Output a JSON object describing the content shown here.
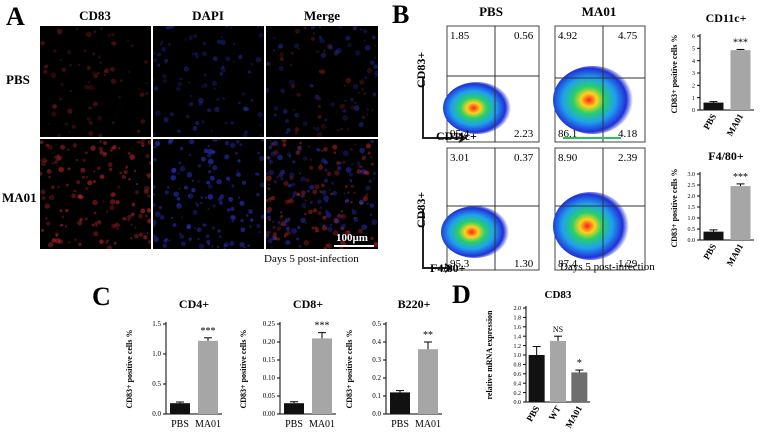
{
  "panels": {
    "A": {
      "letter": "A",
      "col_labels": [
        "CD83",
        "DAPI",
        "Merge"
      ],
      "row_labels": [
        "PBS",
        "MA01"
      ],
      "scale_bar": "100μm",
      "caption": "Days 5 post-infection"
    },
    "B": {
      "letter": "B",
      "col_labels": [
        "PBS",
        "MA01"
      ],
      "rows": [
        {
          "y_label": "CD83+",
          "x_label": "CD11c+",
          "plots": [
            {
              "q": [
                "1.85",
                "0.56",
                "95.4",
                "2.23"
              ]
            },
            {
              "q": [
                "4.92",
                "4.75",
                "86.1",
                "4.18"
              ]
            }
          ]
        },
        {
          "y_label": "CD83+",
          "x_label": "F4/80+",
          "plots": [
            {
              "q": [
                "3.01",
                "0.37",
                "95.3",
                "1.30"
              ]
            },
            {
              "q": [
                "8.90",
                "2.39",
                "87.4",
                "1.29"
              ]
            }
          ]
        }
      ],
      "caption": "Days 5 post-infection"
    },
    "C": {
      "letter": "C"
    },
    "D": {
      "letter": "D"
    }
  },
  "colors": {
    "black_bar": "#111111",
    "grey_bar": "#a6a6a6",
    "dark_grey_bar": "#6e6e6e",
    "stain_red": "#c0262a",
    "stain_blue": "#2b34c8"
  },
  "chart_data": [
    {
      "id": "b-cd11c",
      "type": "bar",
      "title": "CD11c+",
      "ylabel": "CD83+ positive cells %",
      "categories": [
        "PBS",
        "MA01"
      ],
      "values": [
        0.6,
        4.85
      ],
      "errors": [
        0.08,
        0.06
      ],
      "ylim": [
        0,
        6
      ],
      "ticks": [
        0,
        1,
        2,
        3,
        4,
        5,
        6
      ],
      "significance": [
        "",
        "***"
      ]
    },
    {
      "id": "b-f480",
      "type": "bar",
      "title": "F4/80+",
      "ylabel": "CD83+ positive cells %",
      "categories": [
        "PBS",
        "MA01"
      ],
      "values": [
        0.38,
        2.45
      ],
      "errors": [
        0.08,
        0.1
      ],
      "ylim": [
        0,
        3
      ],
      "ticks": [
        0.0,
        0.5,
        1.0,
        1.5,
        2.0,
        2.5,
        3.0
      ],
      "significance": [
        "",
        "***"
      ]
    },
    {
      "id": "c-cd4",
      "type": "bar",
      "title": "CD4+",
      "ylabel": "CD83+ positive cells %",
      "categories": [
        "PBS",
        "MA01"
      ],
      "values": [
        0.18,
        1.22
      ],
      "errors": [
        0.02,
        0.05
      ],
      "ylim": [
        0,
        1.5
      ],
      "ticks": [
        0.0,
        0.5,
        1.0,
        1.5
      ],
      "significance": [
        "",
        "***"
      ]
    },
    {
      "id": "c-cd8",
      "type": "bar",
      "title": "CD8+",
      "ylabel": "CD83+ positive cells %",
      "categories": [
        "PBS",
        "MA01"
      ],
      "values": [
        0.03,
        0.21
      ],
      "errors": [
        0.004,
        0.016
      ],
      "ylim": [
        0,
        0.25
      ],
      "ticks": [
        0.0,
        0.05,
        0.1,
        0.15,
        0.2,
        0.25
      ],
      "significance": [
        "",
        "***"
      ]
    },
    {
      "id": "c-b220",
      "type": "bar",
      "title": "B220+",
      "ylabel": "CD83+ positive cells %",
      "categories": [
        "PBS",
        "MA01"
      ],
      "values": [
        0.12,
        0.36
      ],
      "errors": [
        0.01,
        0.04
      ],
      "ylim": [
        0,
        0.5
      ],
      "ticks": [
        0.0,
        0.1,
        0.2,
        0.3,
        0.4,
        0.5
      ],
      "significance": [
        "",
        "**"
      ]
    },
    {
      "id": "d-cd83",
      "type": "bar",
      "title": "CD83",
      "ylabel": "relative mRNA expression",
      "categories": [
        "PBS",
        "WT",
        "MA01"
      ],
      "values": [
        1.0,
        1.3,
        0.63
      ],
      "errors": [
        0.18,
        0.1,
        0.05
      ],
      "ylim": [
        0,
        2.0
      ],
      "ticks": [
        0.0,
        0.2,
        0.4,
        0.6,
        0.8,
        1.0,
        1.2,
        1.4,
        1.6,
        1.8,
        2.0
      ],
      "significance": [
        "",
        "NS",
        "*"
      ]
    }
  ]
}
